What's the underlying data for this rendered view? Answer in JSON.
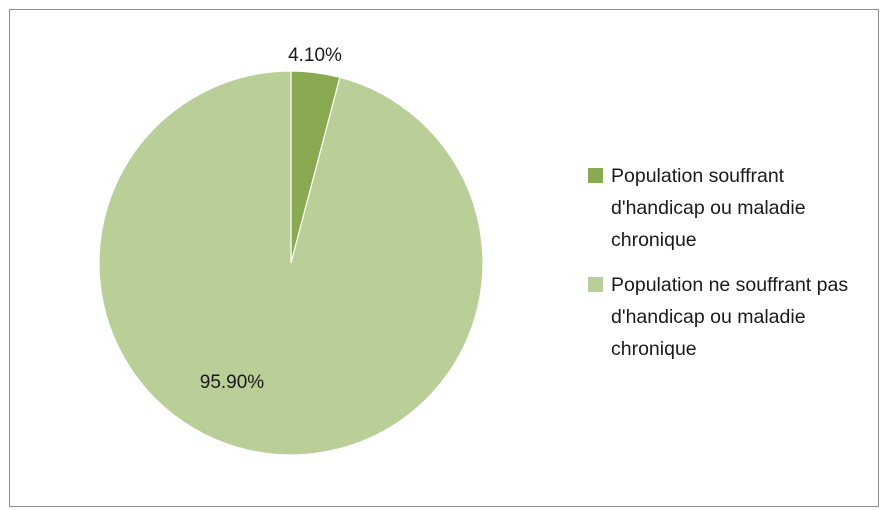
{
  "chart_data": {
    "type": "pie",
    "title": "",
    "legend_position": "right",
    "slices": [
      {
        "name": "Population souffrant d'handicap ou maladie chronique",
        "value": 4.1,
        "label": "4.10%",
        "color": "#8aaa52"
      },
      {
        "name": "Population ne souffrant pas d'handicap ou maladie chronique",
        "value": 95.9,
        "label": "95.90%",
        "color": "#bacf97"
      }
    ]
  }
}
